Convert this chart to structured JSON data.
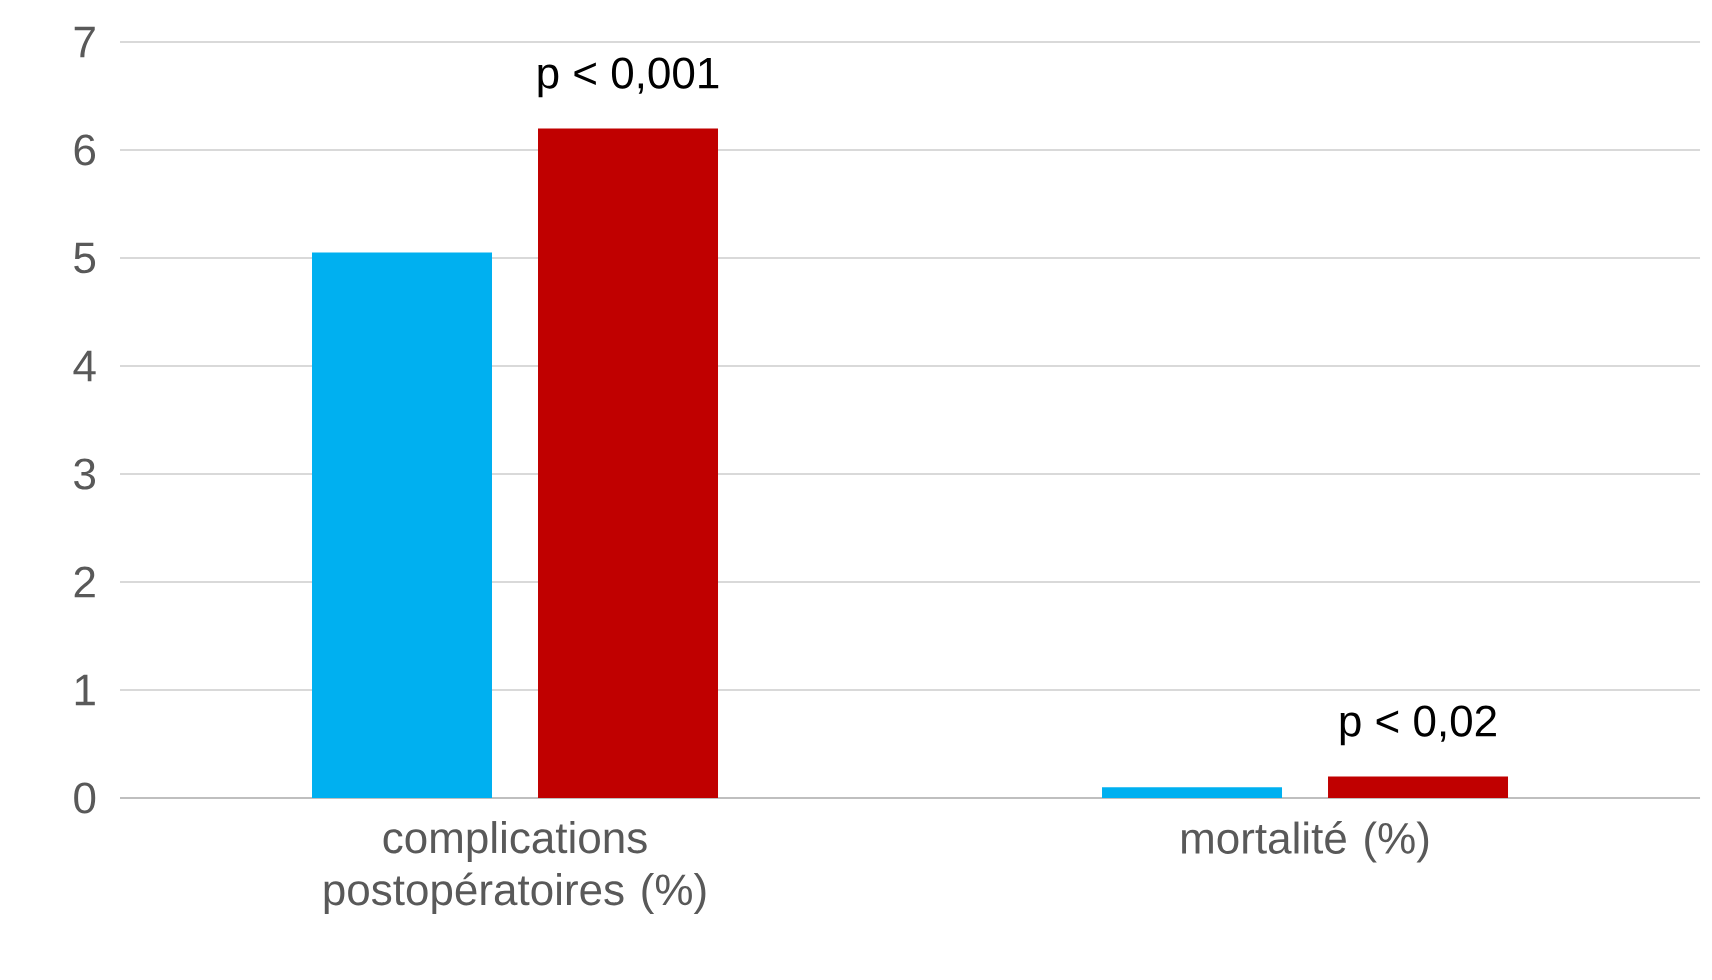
{
  "chart_data": {
    "type": "bar",
    "categories": [
      "complications postopératoires (%)",
      "mortalité (%)"
    ],
    "series": [
      {
        "color": "#00b0f0",
        "values": [
          5.05,
          0.1
        ]
      },
      {
        "color": "#c00000",
        "values": [
          6.2,
          0.2
        ]
      }
    ],
    "ylim": [
      0,
      7
    ],
    "yticks": [
      0,
      1,
      2,
      3,
      4,
      5,
      6,
      7
    ],
    "grid": "y",
    "annotations": [
      "p < 0,001",
      "p < 0,02"
    ]
  }
}
